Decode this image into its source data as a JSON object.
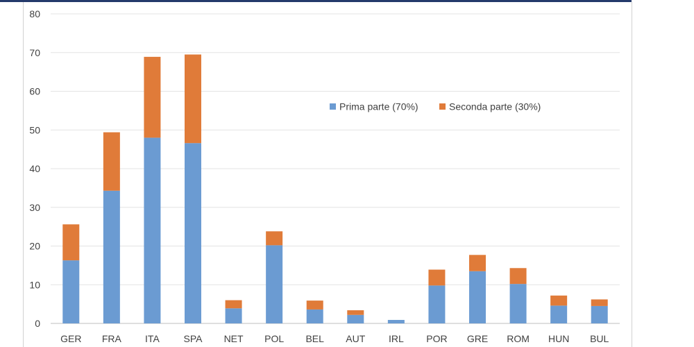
{
  "chart_data": {
    "type": "bar",
    "stacked": true,
    "categories": [
      "GER",
      "FRA",
      "ITA",
      "SPA",
      "NET",
      "POL",
      "BEL",
      "AUT",
      "IRL",
      "POR",
      "GRE",
      "ROM",
      "HUN",
      "BUL"
    ],
    "series": [
      {
        "name": "Prima parte (70%)",
        "color": "#6b9bd2",
        "values": [
          16.3,
          34.3,
          48.0,
          46.6,
          3.9,
          20.2,
          3.6,
          2.2,
          0.9,
          9.8,
          13.5,
          10.2,
          4.6,
          4.5
        ]
      },
      {
        "name": "Seconda parte (30%)",
        "color": "#e07b39",
        "values": [
          9.3,
          15.1,
          20.9,
          22.9,
          2.1,
          3.6,
          2.3,
          1.2,
          0.0,
          4.1,
          4.2,
          4.1,
          2.6,
          1.7
        ]
      }
    ],
    "ylim": [
      0,
      80
    ],
    "yticks": [
      "0",
      "10",
      "20",
      "30",
      "40",
      "50",
      "60",
      "70",
      "80"
    ],
    "grid": true,
    "legend_position": "upper-right"
  }
}
